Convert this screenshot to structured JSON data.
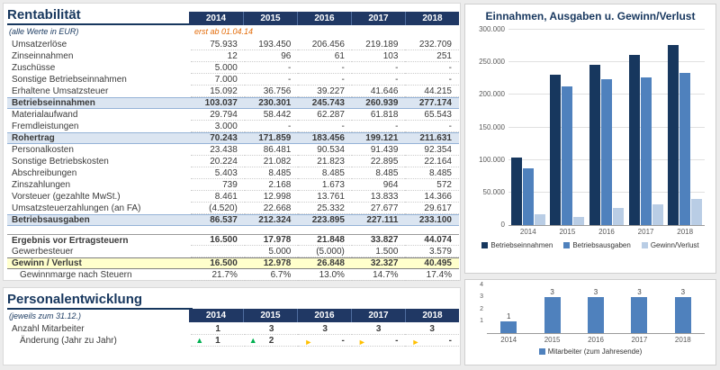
{
  "colors": {
    "title_color": "#17375E",
    "header_bg": "#203864",
    "subtotal_bg": "#DBE5F1",
    "result_bg": "#FFFFCC",
    "note_color": "#E36C0A",
    "arrow_up": "#00B050",
    "arrow_right": "#FFC000"
  },
  "left": {
    "rentabilitaet": {
      "title": "Rentabilität",
      "subtitle": "(alle Werte in EUR)",
      "note": "erst ab 01.04.14",
      "years": [
        "2014",
        "2015",
        "2016",
        "2017",
        "2018"
      ],
      "rows": [
        {
          "label": "Umsatzerlöse",
          "style": "normal",
          "values": [
            "75.933",
            "193.450",
            "206.456",
            "219.189",
            "232.709"
          ]
        },
        {
          "label": "Zinseinnahmen",
          "style": "normal",
          "values": [
            "12",
            "96",
            "61",
            "103",
            "251"
          ]
        },
        {
          "label": "Zuschüsse",
          "style": "normal",
          "values": [
            "5.000",
            "-",
            "-",
            "-",
            "-"
          ]
        },
        {
          "label": "Sonstige Betriebseinnahmen",
          "style": "normal",
          "values": [
            "7.000",
            "-",
            "-",
            "-",
            "-"
          ]
        },
        {
          "label": "Erhaltene Umsatzsteuer",
          "style": "normal",
          "values": [
            "15.092",
            "36.756",
            "39.227",
            "41.646",
            "44.215"
          ]
        },
        {
          "label": "Betriebseinnahmen",
          "style": "subtotal",
          "values": [
            "103.037",
            "230.301",
            "245.743",
            "260.939",
            "277.174"
          ]
        },
        {
          "label": "Materialaufwand",
          "style": "normal",
          "values": [
            "29.794",
            "58.442",
            "62.287",
            "61.818",
            "65.543"
          ]
        },
        {
          "label": "Fremdleistungen",
          "style": "normal",
          "values": [
            "3.000",
            "-",
            "-",
            "-",
            "-"
          ]
        },
        {
          "label": "Rohertrag",
          "style": "subtotal",
          "values": [
            "70.243",
            "171.859",
            "183.456",
            "199.121",
            "211.631"
          ]
        },
        {
          "label": "Personalkosten",
          "style": "normal",
          "values": [
            "23.438",
            "86.481",
            "90.534",
            "91.439",
            "92.354"
          ]
        },
        {
          "label": "Sonstige Betriebskosten",
          "style": "normal",
          "values": [
            "20.224",
            "21.082",
            "21.823",
            "22.895",
            "22.164"
          ]
        },
        {
          "label": "Abschreibungen",
          "style": "normal",
          "values": [
            "5.403",
            "8.485",
            "8.485",
            "8.485",
            "8.485"
          ]
        },
        {
          "label": "Zinszahlungen",
          "style": "normal",
          "values": [
            "739",
            "2.168",
            "1.673",
            "964",
            "572"
          ]
        },
        {
          "label": "Vorsteuer (gezahlte MwSt.)",
          "style": "normal",
          "values": [
            "8.461",
            "12.998",
            "13.761",
            "13.833",
            "14.366"
          ]
        },
        {
          "label": "Umsatzsteuerzahlungen (an FA)",
          "style": "normal",
          "values": [
            "(4.520)",
            "22.668",
            "25.332",
            "27.677",
            "29.617"
          ]
        },
        {
          "label": "Betriebsausgaben",
          "style": "subtotal",
          "values": [
            "86.537",
            "212.324",
            "223.895",
            "227.111",
            "233.100"
          ]
        },
        {
          "label": "",
          "style": "spacer",
          "values": [
            "",
            "",
            "",
            "",
            ""
          ]
        },
        {
          "label": "Ergebnis vor Ertragsteuern",
          "style": "bold",
          "values": [
            "16.500",
            "17.978",
            "21.848",
            "33.827",
            "44.074"
          ]
        },
        {
          "label": "Gewerbesteuer",
          "style": "normal",
          "values": [
            "",
            "5.000",
            "(5.000)",
            "1.500",
            "3.579"
          ]
        },
        {
          "label": "Gewinn / Verlust",
          "style": "result",
          "values": [
            "16.500",
            "12.978",
            "26.848",
            "32.327",
            "40.495"
          ]
        },
        {
          "label": "Gewinnmarge nach Steuern",
          "style": "indent",
          "values": [
            "21.7%",
            "6.7%",
            "13.0%",
            "14.7%",
            "17.4%"
          ]
        }
      ]
    },
    "personal": {
      "title": "Personalentwicklung",
      "subtitle": "(jeweils zum 31.12.)",
      "years": [
        "2014",
        "2015",
        "2016",
        "2017",
        "2018"
      ],
      "rows": [
        {
          "label": "Anzahl Mitarbeiter",
          "style": "bcenter",
          "values": [
            "1",
            "3",
            "3",
            "3",
            "3"
          ]
        },
        {
          "label": "Änderung (Jahr zu Jahr)",
          "style": "icons",
          "values": [
            {
              "icon": "up",
              "text": "1"
            },
            {
              "icon": "up",
              "text": "2"
            },
            {
              "icon": "right",
              "text": "-"
            },
            {
              "icon": "right",
              "text": "-"
            },
            {
              "icon": "right",
              "text": "-"
            }
          ]
        }
      ]
    }
  },
  "chart_data": [
    {
      "type": "bar",
      "title": "Einnahmen, Ausgaben u. Gewinn/Verlust",
      "categories": [
        "2014",
        "2015",
        "2016",
        "2017",
        "2018"
      ],
      "series": [
        {
          "name": "Betriebseinnahmen",
          "color": "#17375E",
          "values": [
            103037,
            230301,
            245743,
            260939,
            277174
          ]
        },
        {
          "name": "Betriebsausgaben",
          "color": "#4F81BD",
          "values": [
            86537,
            212324,
            223895,
            227111,
            233100
          ]
        },
        {
          "name": "Gewinn/Verlust",
          "color": "#B9CDE5",
          "values": [
            16500,
            12978,
            26848,
            32327,
            40495
          ]
        }
      ],
      "ylim": [
        0,
        300000
      ],
      "yticks": [
        {
          "label": "0",
          "value": 0
        },
        {
          "label": "50.000",
          "value": 50000
        },
        {
          "label": "100.000",
          "value": 100000
        },
        {
          "label": "150.000",
          "value": 150000
        },
        {
          "label": "200.000",
          "value": 200000
        },
        {
          "label": "250.000",
          "value": 250000
        },
        {
          "label": "300.000",
          "value": 300000
        }
      ],
      "grid": true,
      "data_labels": false,
      "legend_position": "bottom"
    },
    {
      "type": "bar",
      "title": "",
      "categories": [
        "2014",
        "2015",
        "2016",
        "2017",
        "2018"
      ],
      "series": [
        {
          "name": "Mitarbeiter (zum Jahresende)",
          "color": "#4F81BD",
          "values": [
            1,
            3,
            3,
            3,
            3
          ]
        }
      ],
      "ylim": [
        0,
        4
      ],
      "yticks": [
        {
          "label": "1",
          "value": 1
        },
        {
          "label": "2",
          "value": 2
        },
        {
          "label": "3",
          "value": 3
        },
        {
          "label": "4",
          "value": 4
        }
      ],
      "grid": false,
      "data_labels": true,
      "legend_position": "bottom"
    }
  ]
}
